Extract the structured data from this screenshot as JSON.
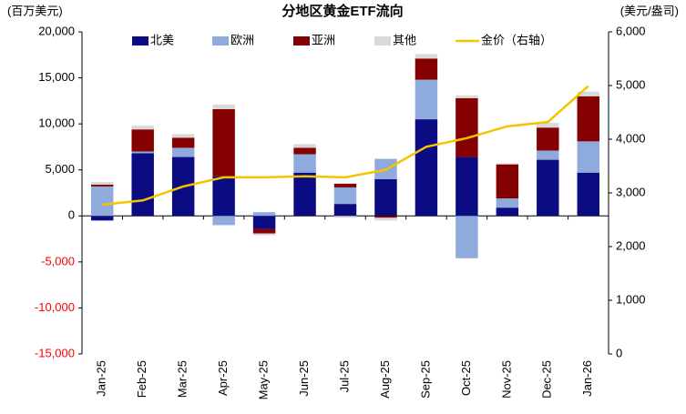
{
  "chart_data": {
    "type": "stacked-bar-line",
    "title": "分地区黄金ETF流向",
    "y_label": "(百万美元)",
    "y2_label": "(美元/盎司)",
    "legend": "top",
    "negative_tick_color": "#ff0000",
    "categories": [
      "Jan-25",
      "Feb-25",
      "Mar-25",
      "Apr-25",
      "May-25",
      "Jun-25",
      "Jul-25",
      "Aug-25",
      "Sep-25",
      "Oct-25",
      "Nov-25",
      "Dec-25",
      "Jan-26"
    ],
    "series": [
      {
        "name": "北美",
        "color": "#0b0b82",
        "values": [
          -500,
          6800,
          6400,
          4300,
          -1400,
          4700,
          1300,
          4000,
          10500,
          6400,
          900,
          6100,
          4700
        ]
      },
      {
        "name": "欧洲",
        "color": "#8faadc",
        "values": [
          3200,
          200,
          1000,
          -1000,
          400,
          2000,
          1800,
          2200,
          4300,
          -4600,
          1000,
          1000,
          3400
        ]
      },
      {
        "name": "亚洲",
        "color": "#850000",
        "values": [
          200,
          2400,
          1100,
          7300,
          -500,
          700,
          400,
          -200,
          2300,
          6400,
          3700,
          2500,
          4900
        ]
      },
      {
        "name": "其他",
        "color": "#d9d9d9",
        "values": [
          300,
          400,
          400,
          500,
          -200,
          400,
          -200,
          -300,
          500,
          300,
          100,
          500,
          500
        ]
      },
      {
        "name": "金价（右轴）",
        "color": "#f5c400",
        "axis": "y2",
        "values": [
          2780,
          2860,
          3120,
          3290,
          3290,
          3310,
          3290,
          3430,
          3860,
          4020,
          4240,
          4320,
          4990
        ]
      }
    ],
    "ylim": [
      -15000,
      20000
    ],
    "yticks": [
      {
        "value": -15000,
        "label": "-15,000"
      },
      {
        "value": -10000,
        "label": "-10,000"
      },
      {
        "value": -5000,
        "label": "-5,000"
      },
      0,
      {
        "value": 5000,
        "label": "5,000"
      },
      {
        "value": 10000,
        "label": "10,000"
      },
      {
        "value": 15000,
        "label": "15,000"
      },
      {
        "value": 20000,
        "label": "20,000"
      }
    ],
    "y2lim": [
      0,
      6000
    ],
    "y2ticks": [
      0,
      {
        "value": 1000,
        "label": "1,000"
      },
      {
        "value": 2000,
        "label": "2,000"
      },
      {
        "value": 3000,
        "label": "3,000"
      },
      {
        "value": 4000,
        "label": "4,000"
      },
      {
        "value": 5000,
        "label": "5,000"
      },
      {
        "value": 6000,
        "label": "6,000"
      }
    ]
  }
}
